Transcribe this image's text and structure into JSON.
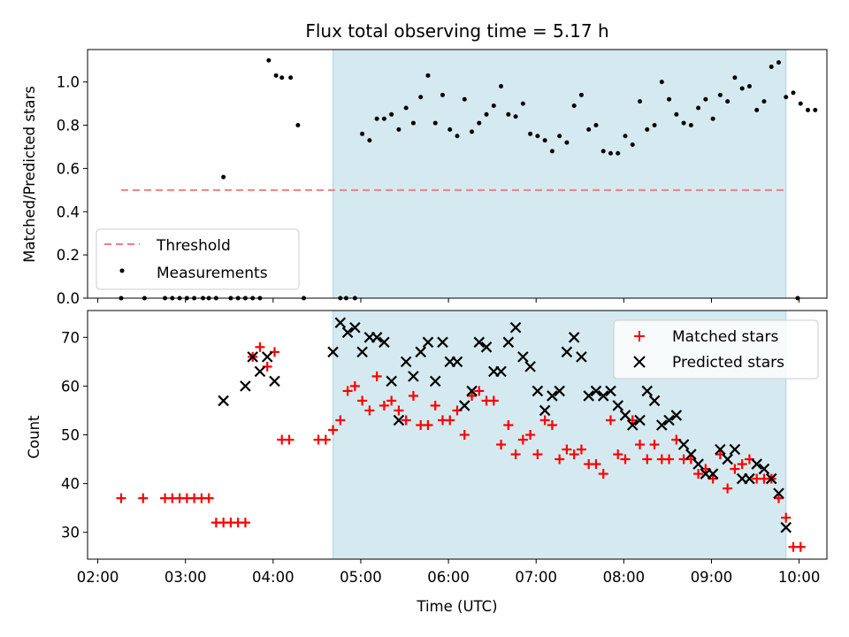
{
  "chart_data": [
    {
      "type": "scatter",
      "title": "Flux total observing time = 5.17 h",
      "xlabel": "",
      "ylabel": "Matched/Predicted stars",
      "ylim": [
        0,
        1.15
      ],
      "y_ticks": [
        "0.0",
        "0.2",
        "0.4",
        "0.6",
        "0.8",
        "1.0"
      ],
      "y_tick_values": [
        0,
        0.2,
        0.4,
        0.6,
        0.8,
        1.0
      ],
      "shaded_region": {
        "x_start": "04:41",
        "x_end": "09:51",
        "color": "#d4eaf0"
      },
      "threshold": {
        "name": "Threshold",
        "y": 0.5,
        "x_start": "02:16",
        "x_end": "09:51",
        "color": "#f08080"
      },
      "legend": {
        "position": "lower-left",
        "entries": [
          "Threshold",
          "Measurements"
        ]
      },
      "series": [
        {
          "name": "Measurements",
          "marker": "dot",
          "color": "#000000",
          "points": [
            [
              "02:16",
              0
            ],
            [
              "02:32",
              0
            ],
            [
              "02:46",
              0
            ],
            [
              "02:51",
              0
            ],
            [
              "02:56",
              0
            ],
            [
              "03:01",
              0
            ],
            [
              "03:06",
              0
            ],
            [
              "03:12",
              0
            ],
            [
              "03:16",
              0
            ],
            [
              "03:21",
              0
            ],
            [
              "03:26",
              0.56
            ],
            [
              "03:31",
              0
            ],
            [
              "03:36",
              0
            ],
            [
              "03:41",
              0
            ],
            [
              "03:46",
              0
            ],
            [
              "03:51",
              0
            ],
            [
              "03:57",
              1.1
            ],
            [
              "04:02",
              1.03
            ],
            [
              "04:06",
              1.02
            ],
            [
              "04:12",
              1.02
            ],
            [
              "04:17",
              0.8
            ],
            [
              "04:21",
              0
            ],
            [
              "04:46",
              0
            ],
            [
              "04:50",
              0
            ],
            [
              "04:56",
              0
            ],
            [
              "05:01",
              0.76
            ],
            [
              "05:06",
              0.73
            ],
            [
              "05:11",
              0.83
            ],
            [
              "05:16",
              0.83
            ],
            [
              "05:21",
              0.85
            ],
            [
              "05:26",
              0.78
            ],
            [
              "05:31",
              0.88
            ],
            [
              "05:36",
              0.81
            ],
            [
              "05:41",
              0.93
            ],
            [
              "05:46",
              1.03
            ],
            [
              "05:51",
              0.81
            ],
            [
              "05:56",
              0.94
            ],
            [
              "06:01",
              0.78
            ],
            [
              "06:06",
              0.75
            ],
            [
              "06:11",
              0.92
            ],
            [
              "06:16",
              0.77
            ],
            [
              "06:21",
              0.81
            ],
            [
              "06:26",
              0.85
            ],
            [
              "06:31",
              0.89
            ],
            [
              "06:36",
              0.98
            ],
            [
              "06:41",
              0.85
            ],
            [
              "06:46",
              0.84
            ],
            [
              "06:51",
              0.9
            ],
            [
              "06:56",
              0.76
            ],
            [
              "07:01",
              0.75
            ],
            [
              "07:06",
              0.73
            ],
            [
              "07:11",
              0.68
            ],
            [
              "07:16",
              0.75
            ],
            [
              "07:21",
              0.72
            ],
            [
              "07:26",
              0.89
            ],
            [
              "07:31",
              0.94
            ],
            [
              "07:36",
              0.78
            ],
            [
              "07:41",
              0.8
            ],
            [
              "07:46",
              0.68
            ],
            [
              "07:51",
              0.67
            ],
            [
              "07:56",
              0.67
            ],
            [
              "08:01",
              0.75
            ],
            [
              "08:06",
              0.71
            ],
            [
              "08:11",
              0.91
            ],
            [
              "08:16",
              0.78
            ],
            [
              "08:21",
              0.8
            ],
            [
              "08:26",
              1.0
            ],
            [
              "08:31",
              0.92
            ],
            [
              "08:36",
              0.85
            ],
            [
              "08:41",
              0.81
            ],
            [
              "08:46",
              0.8
            ],
            [
              "08:51",
              0.88
            ],
            [
              "08:56",
              0.92
            ],
            [
              "09:01",
              0.83
            ],
            [
              "09:06",
              0.94
            ],
            [
              "09:11",
              0.91
            ],
            [
              "09:16",
              1.02
            ],
            [
              "09:21",
              0.97
            ],
            [
              "09:26",
              0.98
            ],
            [
              "09:31",
              0.87
            ],
            [
              "09:36",
              0.91
            ],
            [
              "09:41",
              1.07
            ],
            [
              "09:46",
              1.09
            ],
            [
              "09:51",
              0.93
            ],
            [
              "09:56",
              0.95
            ],
            [
              "10:01",
              0.9
            ],
            [
              "10:06",
              0.87
            ],
            [
              "10:11",
              0.87
            ],
            [
              "09:59",
              0
            ]
          ]
        }
      ]
    },
    {
      "type": "scatter",
      "title": "",
      "xlabel": "Time (UTC)",
      "ylabel": "Count",
      "ylim": [
        24.5,
        75.5
      ],
      "y_ticks": [
        "30",
        "40",
        "50",
        "60",
        "70"
      ],
      "y_tick_values": [
        30,
        40,
        50,
        60,
        70
      ],
      "x_ticks": [
        "02:00",
        "03:00",
        "04:00",
        "05:00",
        "06:00",
        "07:00",
        "08:00",
        "09:00",
        "10:00"
      ],
      "xlim": [
        "01:53",
        "10:19"
      ],
      "shaded_region": {
        "x_start": "04:41",
        "x_end": "09:51",
        "color": "#d4eaf0"
      },
      "legend": {
        "position": "top-right",
        "entries": [
          "Matched stars",
          "Predicted stars"
        ]
      },
      "series": [
        {
          "name": "Matched stars",
          "marker": "plus",
          "color": "#ff0000",
          "points": [
            [
              "02:16",
              37
            ],
            [
              "02:31",
              37
            ],
            [
              "02:46",
              37
            ],
            [
              "02:51",
              37
            ],
            [
              "02:56",
              37
            ],
            [
              "03:01",
              37
            ],
            [
              "03:06",
              37
            ],
            [
              "03:11",
              37
            ],
            [
              "03:16",
              37
            ],
            [
              "03:21",
              32
            ],
            [
              "03:26",
              32
            ],
            [
              "03:31",
              32
            ],
            [
              "03:36",
              32
            ],
            [
              "03:41",
              32
            ],
            [
              "03:46",
              66
            ],
            [
              "03:51",
              68
            ],
            [
              "03:56",
              64
            ],
            [
              "04:01",
              67
            ],
            [
              "04:06",
              49
            ],
            [
              "04:11",
              49
            ],
            [
              "04:31",
              49
            ],
            [
              "04:36",
              49
            ],
            [
              "04:41",
              51
            ],
            [
              "04:46",
              53
            ],
            [
              "04:51",
              59
            ],
            [
              "04:56",
              60
            ],
            [
              "05:01",
              57
            ],
            [
              "05:06",
              55
            ],
            [
              "05:11",
              62
            ],
            [
              "05:16",
              56
            ],
            [
              "05:21",
              57
            ],
            [
              "05:26",
              55
            ],
            [
              "05:31",
              53
            ],
            [
              "05:36",
              58
            ],
            [
              "05:41",
              52
            ],
            [
              "05:46",
              52
            ],
            [
              "05:51",
              56
            ],
            [
              "05:56",
              53
            ],
            [
              "06:01",
              53
            ],
            [
              "06:06",
              55
            ],
            [
              "06:11",
              50
            ],
            [
              "06:16",
              58
            ],
            [
              "06:21",
              59
            ],
            [
              "06:26",
              57
            ],
            [
              "06:31",
              57
            ],
            [
              "06:36",
              48
            ],
            [
              "06:41",
              52
            ],
            [
              "06:46",
              46
            ],
            [
              "06:51",
              49
            ],
            [
              "06:56",
              50
            ],
            [
              "07:01",
              46
            ],
            [
              "07:06",
              53
            ],
            [
              "07:11",
              52
            ],
            [
              "07:16",
              45
            ],
            [
              "07:21",
              47
            ],
            [
              "07:26",
              46
            ],
            [
              "07:31",
              47
            ],
            [
              "07:36",
              44
            ],
            [
              "07:41",
              44
            ],
            [
              "07:46",
              42
            ],
            [
              "07:51",
              53
            ],
            [
              "07:56",
              46
            ],
            [
              "08:01",
              45
            ],
            [
              "08:06",
              53
            ],
            [
              "08:11",
              48
            ],
            [
              "08:16",
              45
            ],
            [
              "08:21",
              48
            ],
            [
              "08:26",
              45
            ],
            [
              "08:31",
              45
            ],
            [
              "08:36",
              49
            ],
            [
              "08:41",
              45
            ],
            [
              "08:46",
              45
            ],
            [
              "08:51",
              42
            ],
            [
              "08:56",
              43
            ],
            [
              "09:01",
              41
            ],
            [
              "09:06",
              46
            ],
            [
              "09:11",
              39
            ],
            [
              "09:16",
              43
            ],
            [
              "09:21",
              44
            ],
            [
              "09:26",
              45
            ],
            [
              "09:31",
              41
            ],
            [
              "09:36",
              41
            ],
            [
              "09:41",
              41
            ],
            [
              "09:46",
              37
            ],
            [
              "09:51",
              33
            ],
            [
              "09:56",
              27
            ],
            [
              "10:01",
              27
            ]
          ]
        },
        {
          "name": "Predicted stars",
          "marker": "x",
          "color": "#000000",
          "points": [
            [
              "03:26",
              57
            ],
            [
              "03:41",
              60
            ],
            [
              "03:46",
              66
            ],
            [
              "03:51",
              63
            ],
            [
              "03:56",
              66
            ],
            [
              "04:01",
              61
            ],
            [
              "04:41",
              67
            ],
            [
              "04:46",
              73
            ],
            [
              "04:51",
              71
            ],
            [
              "04:56",
              72
            ],
            [
              "05:01",
              67
            ],
            [
              "05:06",
              70
            ],
            [
              "05:11",
              70
            ],
            [
              "05:16",
              69
            ],
            [
              "05:21",
              61
            ],
            [
              "05:26",
              53
            ],
            [
              "05:31",
              65
            ],
            [
              "05:36",
              62
            ],
            [
              "05:41",
              67
            ],
            [
              "05:46",
              69
            ],
            [
              "05:51",
              61
            ],
            [
              "05:56",
              69
            ],
            [
              "06:01",
              65
            ],
            [
              "06:06",
              65
            ],
            [
              "06:11",
              56
            ],
            [
              "06:16",
              59
            ],
            [
              "06:21",
              69
            ],
            [
              "06:26",
              68
            ],
            [
              "06:31",
              63
            ],
            [
              "06:36",
              63
            ],
            [
              "06:41",
              69
            ],
            [
              "06:46",
              72
            ],
            [
              "06:51",
              66
            ],
            [
              "06:56",
              64
            ],
            [
              "07:01",
              59
            ],
            [
              "07:06",
              55
            ],
            [
              "07:11",
              58
            ],
            [
              "07:16",
              59
            ],
            [
              "07:21",
              67
            ],
            [
              "07:26",
              70
            ],
            [
              "07:31",
              66
            ],
            [
              "07:36",
              58
            ],
            [
              "07:41",
              59
            ],
            [
              "07:46",
              58
            ],
            [
              "07:51",
              59
            ],
            [
              "07:56",
              56
            ],
            [
              "08:01",
              54
            ],
            [
              "08:06",
              52
            ],
            [
              "08:11",
              53
            ],
            [
              "08:16",
              59
            ],
            [
              "08:21",
              57
            ],
            [
              "08:26",
              52
            ],
            [
              "08:31",
              53
            ],
            [
              "08:36",
              54
            ],
            [
              "08:41",
              48
            ],
            [
              "08:46",
              46
            ],
            [
              "08:51",
              44
            ],
            [
              "08:56",
              42
            ],
            [
              "09:01",
              42
            ],
            [
              "09:06",
              47
            ],
            [
              "09:11",
              45
            ],
            [
              "09:16",
              47
            ],
            [
              "09:21",
              41
            ],
            [
              "09:26",
              41
            ],
            [
              "09:31",
              44
            ],
            [
              "09:36",
              43
            ],
            [
              "09:41",
              41
            ],
            [
              "09:46",
              38
            ],
            [
              "09:51",
              31
            ]
          ]
        }
      ]
    }
  ]
}
